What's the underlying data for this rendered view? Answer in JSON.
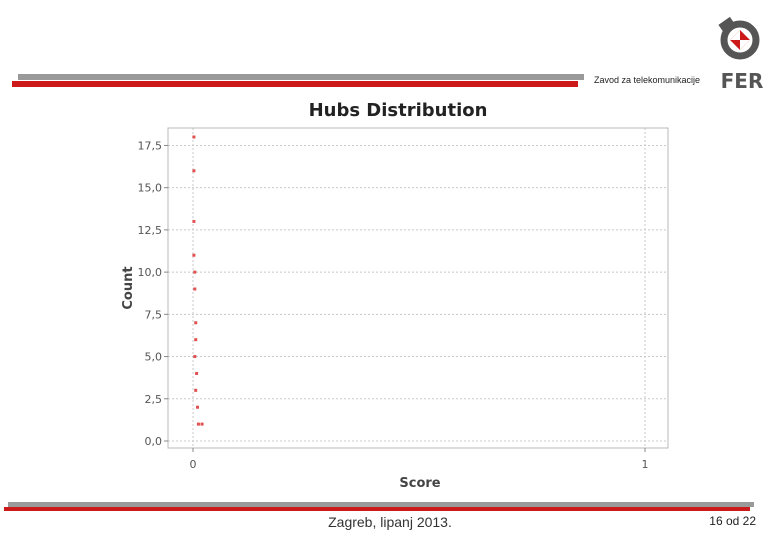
{
  "header": {
    "department": "Zavod za telekomunikacije",
    "logo_text": "FER"
  },
  "footer": {
    "place_date": "Zagreb, lipanj 2013.",
    "page": "16 od 22"
  },
  "colors": {
    "accent_red": "#cc1a1a",
    "rule_gray": "#9a9a9a",
    "point": "#e05050",
    "grid": "#c8c8c8"
  },
  "chart_data": {
    "type": "scatter",
    "title": "Hubs Distribution",
    "xlabel": "Score",
    "ylabel": "Count",
    "xlim": [
      0,
      1
    ],
    "ylim": [
      0,
      18
    ],
    "xticks": [
      {
        "value": 0,
        "label": "0"
      },
      {
        "value": 1,
        "label": "1"
      }
    ],
    "yticks": [
      {
        "value": 0,
        "label": "0,0"
      },
      {
        "value": 2.5,
        "label": "2,5"
      },
      {
        "value": 5,
        "label": "5,0"
      },
      {
        "value": 7.5,
        "label": "7,5"
      },
      {
        "value": 10,
        "label": "10,0"
      },
      {
        "value": 12.5,
        "label": "12,5"
      },
      {
        "value": 15,
        "label": "15,0"
      },
      {
        "value": 17.5,
        "label": "17,5"
      }
    ],
    "grid": true,
    "points": [
      {
        "x": 0.002,
        "y": 18
      },
      {
        "x": 0.002,
        "y": 16
      },
      {
        "x": 0.002,
        "y": 13
      },
      {
        "x": 0.002,
        "y": 11
      },
      {
        "x": 0.004,
        "y": 10
      },
      {
        "x": 0.004,
        "y": 9
      },
      {
        "x": 0.006,
        "y": 7
      },
      {
        "x": 0.006,
        "y": 6
      },
      {
        "x": 0.004,
        "y": 5
      },
      {
        "x": 0.008,
        "y": 4
      },
      {
        "x": 0.006,
        "y": 3
      },
      {
        "x": 0.01,
        "y": 2
      },
      {
        "x": 0.02,
        "y": 1
      },
      {
        "x": 0.012,
        "y": 1
      }
    ]
  }
}
